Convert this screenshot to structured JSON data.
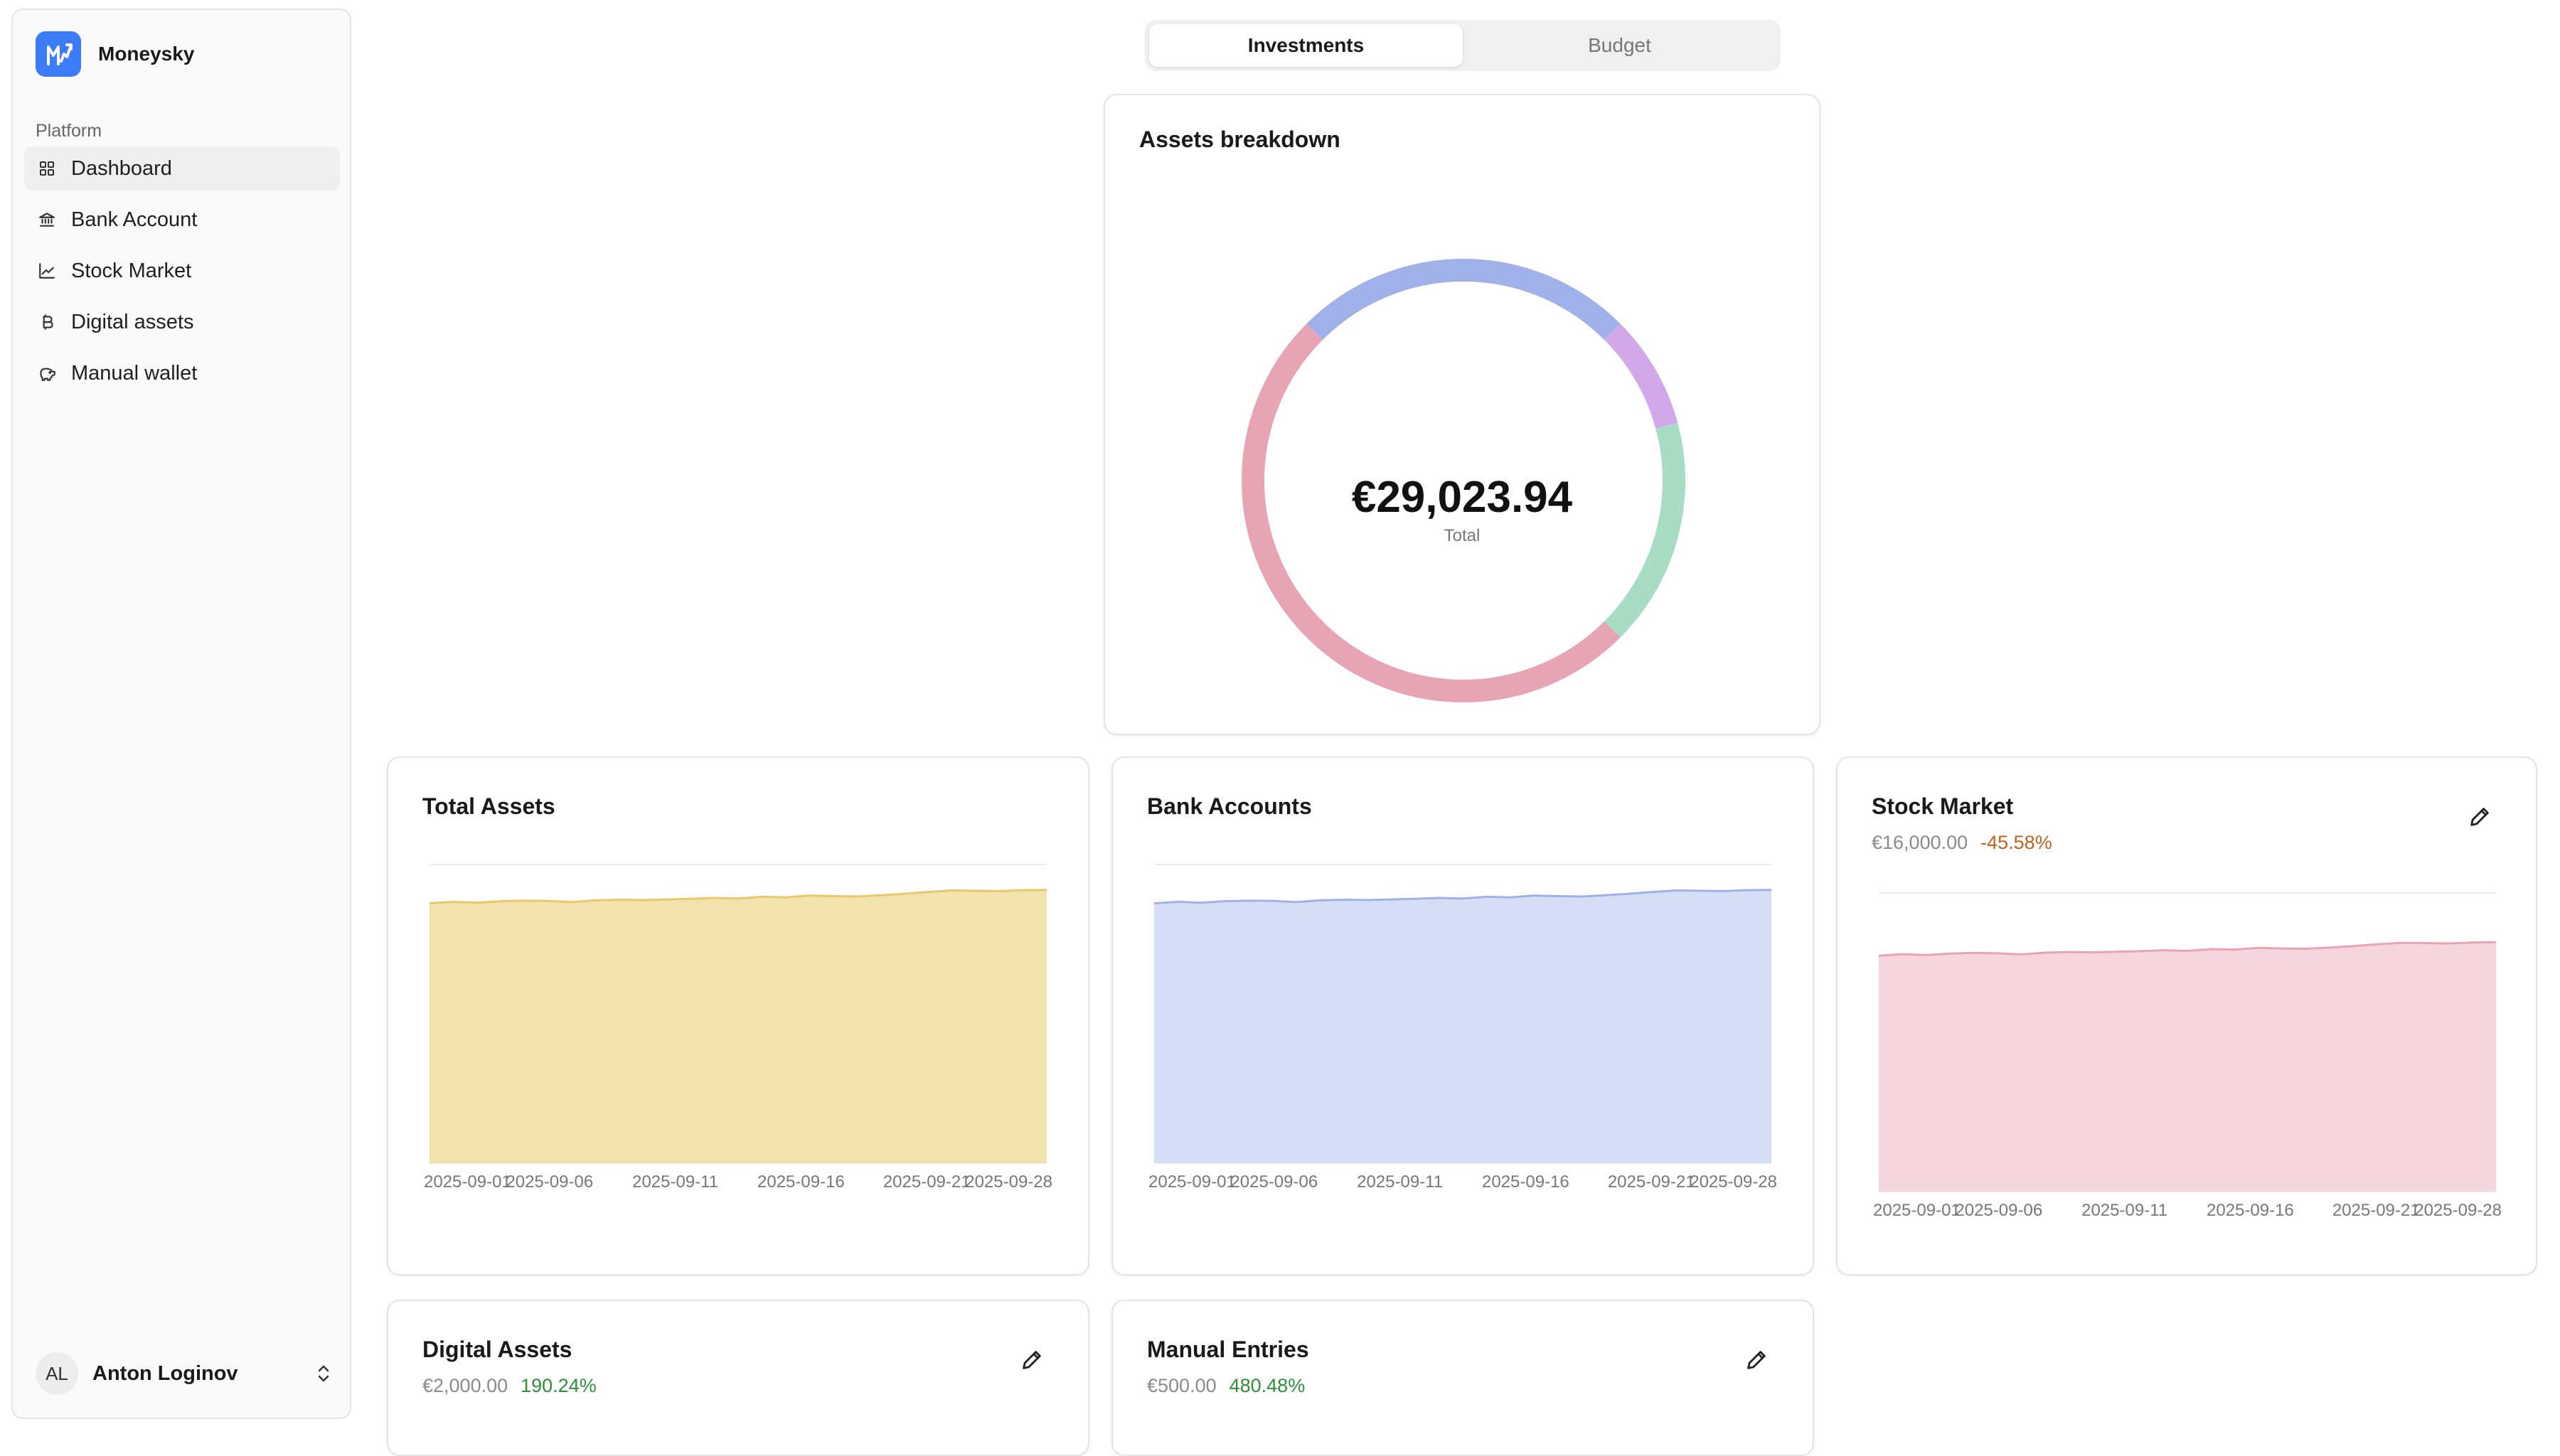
{
  "brand": {
    "name": "Moneysky"
  },
  "sidebar": {
    "section_label": "Platform",
    "items": [
      {
        "label": "Dashboard",
        "icon": "grid-icon",
        "active": true
      },
      {
        "label": "Bank Account",
        "icon": "bank-icon"
      },
      {
        "label": "Stock Market",
        "icon": "line-chart-icon"
      },
      {
        "label": "Digital assets",
        "icon": "bitcoin-icon"
      },
      {
        "label": "Manual wallet",
        "icon": "piggy-bank-icon"
      }
    ]
  },
  "user": {
    "initials": "AL",
    "name": "Anton Loginov"
  },
  "tabs": [
    {
      "label": "Investments",
      "active": true
    },
    {
      "label": "Budget",
      "active": false
    }
  ],
  "breakdown": {
    "title": "Assets breakdown",
    "total": "€29,023.94",
    "total_label": "Total",
    "colors": [
      "#9fb1e8",
      "#d3a8e8",
      "#a9dcc4",
      "#e6a4b5"
    ]
  },
  "cards": {
    "total_assets": {
      "title": "Total Assets",
      "color": "#e8c86a",
      "fill": "#f2e2ae"
    },
    "bank_accounts": {
      "title": "Bank Accounts",
      "color": "#9fb1e8",
      "fill": "#d6def6"
    },
    "stock_market": {
      "title": "Stock Market",
      "amount": "€16,000.00",
      "change": "-45.58%",
      "color": "#e8a4b5",
      "fill": "#f5d6df"
    },
    "digital_assets": {
      "title": "Digital Assets",
      "amount": "€2,000.00",
      "change": "190.24%"
    },
    "manual_entries": {
      "title": "Manual Entries",
      "amount": "€500.00",
      "change": "480.48%"
    }
  },
  "chart_data": [
    {
      "type": "pie",
      "title": "Assets breakdown",
      "categories": [
        "",
        "",
        "",
        ""
      ],
      "values": [
        0.25,
        0.083,
        0.167,
        0.5
      ]
    },
    {
      "type": "area",
      "title": "Total Assets",
      "x_ticks": [
        "2025-09-01",
        "2025-09-06",
        "2025-09-11",
        "2025-09-16",
        "2025-09-21",
        "2025-09-28"
      ],
      "values": [
        0.87,
        0.875,
        0.872,
        0.877,
        0.879,
        0.878,
        0.874,
        0.88,
        0.882,
        0.881,
        0.883,
        0.885,
        0.888,
        0.886,
        0.892,
        0.89,
        0.896,
        0.894,
        0.893,
        0.897,
        0.902,
        0.908,
        0.913,
        0.912,
        0.911,
        0.914,
        0.915
      ]
    },
    {
      "type": "area",
      "title": "Bank Accounts",
      "x_ticks": [
        "2025-09-01",
        "2025-09-06",
        "2025-09-11",
        "2025-09-16",
        "2025-09-21",
        "2025-09-28"
      ],
      "values": [
        0.87,
        0.875,
        0.872,
        0.877,
        0.879,
        0.878,
        0.874,
        0.88,
        0.882,
        0.881,
        0.883,
        0.885,
        0.888,
        0.886,
        0.892,
        0.89,
        0.896,
        0.894,
        0.893,
        0.897,
        0.902,
        0.908,
        0.913,
        0.912,
        0.911,
        0.914,
        0.915
      ]
    },
    {
      "type": "area",
      "title": "Stock Market",
      "x_ticks": [
        "2025-09-01",
        "2025-09-06",
        "2025-09-11",
        "2025-09-16",
        "2025-09-21",
        "2025-09-28"
      ],
      "values": [
        0.79,
        0.795,
        0.792,
        0.797,
        0.799,
        0.798,
        0.794,
        0.8,
        0.802,
        0.801,
        0.803,
        0.805,
        0.808,
        0.806,
        0.812,
        0.81,
        0.816,
        0.814,
        0.813,
        0.817,
        0.822,
        0.828,
        0.833,
        0.832,
        0.831,
        0.834,
        0.835
      ]
    }
  ]
}
